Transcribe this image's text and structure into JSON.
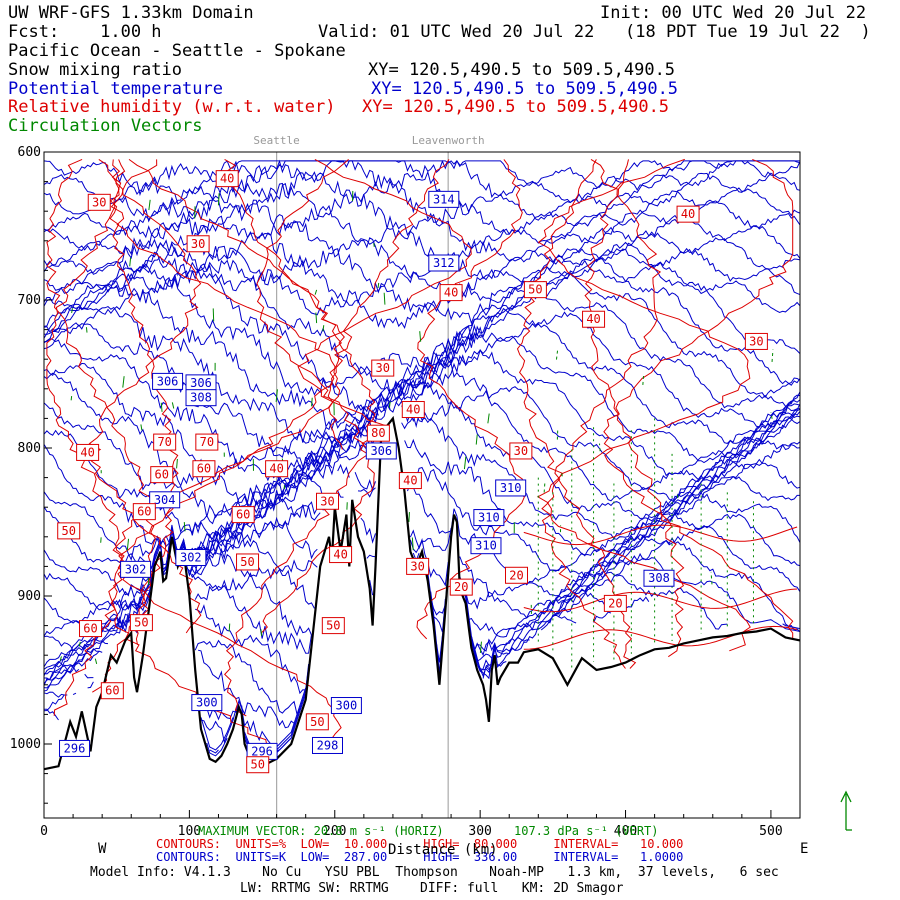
{
  "header": {
    "model_domain": "UW WRF-GFS 1.33km Domain",
    "fcst": "Fcst:    1.00 h",
    "init": "Init: 00 UTC Wed 20 Jul 22",
    "valid": "Valid: 01 UTC Wed 20 Jul 22   (18 PDT Tue 19 Jul 22  )",
    "region": "Pacific Ocean - Seattle - Spokane"
  },
  "fields": [
    {
      "name": "Snow mixing ratio",
      "xy": "XY= 120.5,490.5 to 509.5,490.5",
      "color": "#000000"
    },
    {
      "name": "Potential temperature",
      "xy": "XY= 120.5,490.5 to 509.5,490.5",
      "color": "#0000cc"
    },
    {
      "name": "Relative humidity (w.r.t. water)",
      "xy": "XY= 120.5,490.5 to 509.5,490.5",
      "color": "#dd0000"
    },
    {
      "name": "Circulation Vectors",
      "xy": "",
      "color": "#008800"
    }
  ],
  "locations": [
    {
      "name": "Seattle",
      "distance": 160
    },
    {
      "name": "Leavenworth",
      "distance": 278
    }
  ],
  "footer": {
    "max_vector": "MAXIMUM VECTOR: 20.8 m s⁻¹ (HORIZ)",
    "max_vector_vert": "107.3 dPa s⁻¹ (VERT)",
    "rh_contours": "CONTOURS:  UNITS=%  LOW=  10.000     HIGH=  80.000     INTERVAL=   10.000",
    "th_contours": "CONTOURS:  UNITS=K  LOW=  287.00     HIGH=  336.00     INTERVAL=   1.0000",
    "model_info": "Model Info: V4.1.3    No Cu   YSU PBL  Thompson    Noah-MP   1.3 km,  37 levels,   6 sec",
    "model_info2": "LW: RRTMG SW: RRTMG    DIFF: full   KM: 2D Smagor",
    "west_label": "W",
    "east_label": "E",
    "xlabel": "Distance (km)"
  },
  "chart_data": {
    "type": "line",
    "title": "",
    "xlabel": "Distance (km)",
    "ylabel": "",
    "xlim": [
      0,
      520
    ],
    "ylim": [
      1050,
      600
    ],
    "xticks": [
      0,
      100,
      200,
      300,
      400,
      500
    ],
    "yticks": [
      600,
      700,
      800,
      900,
      1000
    ],
    "terrain": {
      "x": [
        0,
        10,
        14,
        18,
        22,
        26,
        32,
        36,
        40,
        46,
        50,
        56,
        60,
        62,
        64,
        68,
        72,
        76,
        80,
        82,
        84,
        88,
        92,
        96,
        100,
        104,
        108,
        114,
        118,
        122,
        126,
        130,
        134,
        136,
        138,
        142,
        146,
        150,
        154,
        160,
        170,
        180,
        190,
        196,
        198,
        200,
        204,
        208,
        210,
        212,
        216,
        220,
        224,
        226,
        228,
        232,
        236,
        240,
        244,
        248,
        252,
        256,
        260,
        264,
        268,
        272,
        276,
        280,
        282,
        284,
        286,
        290,
        294,
        298,
        302,
        304,
        306,
        308,
        310,
        312,
        314,
        320,
        326,
        330,
        340,
        350,
        360,
        370,
        380,
        390,
        400,
        410,
        420,
        430,
        440,
        450,
        460,
        470,
        480,
        490,
        500,
        510,
        520
      ],
      "y": [
        1017,
        1015,
        1000,
        985,
        995,
        978,
        1005,
        975,
        965,
        940,
        945,
        930,
        925,
        955,
        965,
        940,
        910,
        880,
        870,
        890,
        888,
        860,
        880,
        870,
        900,
        950,
        990,
        1010,
        1012,
        1008,
        1000,
        990,
        975,
        980,
        1000,
        1010,
        1012,
        1008,
        1013,
        1010,
        1000,
        970,
        880,
        860,
        875,
        840,
        870,
        845,
        880,
        835,
        860,
        870,
        895,
        920,
        880,
        790,
        785,
        780,
        800,
        830,
        870,
        880,
        870,
        890,
        920,
        960,
        910,
        860,
        845,
        850,
        895,
        905,
        935,
        950,
        960,
        970,
        985,
        950,
        940,
        960,
        955,
        945,
        945,
        938,
        936,
        942,
        960,
        942,
        950,
        948,
        945,
        940,
        936,
        935,
        932,
        930,
        928,
        927,
        925,
        924,
        922,
        928,
        930
      ]
    },
    "series": [
      {
        "type": "potential_temperature",
        "units": "K",
        "labels": [
          {
            "value": 314,
            "x": 275,
            "y": 632
          },
          {
            "value": 312,
            "x": 275,
            "y": 675
          },
          {
            "value": 306,
            "x": 85,
            "y": 755
          },
          {
            "value": 306,
            "x": 108,
            "y": 756
          },
          {
            "value": 308,
            "x": 108,
            "y": 766
          },
          {
            "value": 306,
            "x": 232,
            "y": 802
          },
          {
            "value": 304,
            "x": 83,
            "y": 835
          },
          {
            "value": 302,
            "x": 63,
            "y": 882
          },
          {
            "value": 302,
            "x": 101,
            "y": 874
          },
          {
            "value": 310,
            "x": 321,
            "y": 827
          },
          {
            "value": 310,
            "x": 306,
            "y": 847
          },
          {
            "value": 310,
            "x": 304,
            "y": 866
          },
          {
            "value": 308,
            "x": 423,
            "y": 888
          },
          {
            "value": 300,
            "x": 112,
            "y": 972
          },
          {
            "value": 300,
            "x": 208,
            "y": 974
          },
          {
            "value": 298,
            "x": 195,
            "y": 1001
          },
          {
            "value": 296,
            "x": 150,
            "y": 1005
          },
          {
            "value": 296,
            "x": 21,
            "y": 1003
          }
        ]
      },
      {
        "type": "relative_humidity",
        "units": "%",
        "labels": [
          {
            "value": 40,
            "x": 126,
            "y": 618
          },
          {
            "value": 30,
            "x": 38,
            "y": 634
          },
          {
            "value": 30,
            "x": 106,
            "y": 662
          },
          {
            "value": 40,
            "x": 443,
            "y": 642
          },
          {
            "value": 40,
            "x": 280,
            "y": 695
          },
          {
            "value": 50,
            "x": 338,
            "y": 693
          },
          {
            "value": 40,
            "x": 378,
            "y": 713
          },
          {
            "value": 30,
            "x": 490,
            "y": 728
          },
          {
            "value": 30,
            "x": 233,
            "y": 746
          },
          {
            "value": 40,
            "x": 254,
            "y": 774
          },
          {
            "value": 80,
            "x": 230,
            "y": 790
          },
          {
            "value": 70,
            "x": 83,
            "y": 796
          },
          {
            "value": 70,
            "x": 112,
            "y": 796
          },
          {
            "value": 40,
            "x": 30,
            "y": 803
          },
          {
            "value": 30,
            "x": 328,
            "y": 802
          },
          {
            "value": 60,
            "x": 81,
            "y": 818
          },
          {
            "value": 60,
            "x": 110,
            "y": 814
          },
          {
            "value": 40,
            "x": 160,
            "y": 814
          },
          {
            "value": 40,
            "x": 252,
            "y": 822
          },
          {
            "value": 30,
            "x": 195,
            "y": 836
          },
          {
            "value": 60,
            "x": 69,
            "y": 843
          },
          {
            "value": 60,
            "x": 137,
            "y": 845
          },
          {
            "value": 50,
            "x": 17,
            "y": 856
          },
          {
            "value": 50,
            "x": 140,
            "y": 877
          },
          {
            "value": 40,
            "x": 204,
            "y": 872
          },
          {
            "value": 30,
            "x": 257,
            "y": 880
          },
          {
            "value": 20,
            "x": 325,
            "y": 886
          },
          {
            "value": 20,
            "x": 287,
            "y": 894
          },
          {
            "value": 20,
            "x": 393,
            "y": 905
          },
          {
            "value": 50,
            "x": 67,
            "y": 918
          },
          {
            "value": 50,
            "x": 199,
            "y": 920
          },
          {
            "value": 60,
            "x": 32,
            "y": 922
          },
          {
            "value": 60,
            "x": 47,
            "y": 964
          },
          {
            "value": 50,
            "x": 188,
            "y": 985
          },
          {
            "value": 50,
            "x": 147,
            "y": 1014
          }
        ]
      }
    ]
  }
}
